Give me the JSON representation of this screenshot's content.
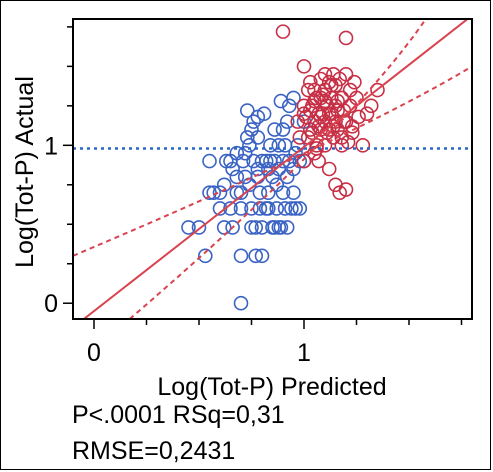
{
  "chart_data": {
    "type": "scatter",
    "title": "",
    "xlabel": "Log(Tot-P) Predicted",
    "ylabel": "Log(Tot-P) Actual",
    "xlim": [
      -0.1,
      1.8
    ],
    "ylim": [
      -0.1,
      1.8
    ],
    "x_ticks": [
      0,
      1
    ],
    "y_ticks": [
      0,
      1
    ],
    "minor_tick_step": 0.25,
    "grid": false,
    "reference_line": {
      "y": 0.98,
      "style": "dotted",
      "color": "#2a66c8"
    },
    "fit_line": {
      "intercept": -0.05,
      "slope": 1.04,
      "color": "#d9434f"
    },
    "confidence_curves": [
      {
        "points": [
          [
            -0.1,
            0.3
          ],
          [
            1.05,
            0.98
          ],
          [
            1.8,
            1.5
          ]
        ],
        "color": "#d9434f",
        "style": "dashed"
      },
      {
        "points": [
          [
            0.17,
            -0.1
          ],
          [
            1.05,
            0.98
          ],
          [
            1.58,
            1.8
          ]
        ],
        "color": "#d9434f",
        "style": "dashed"
      }
    ],
    "series": [
      {
        "color": "#3a63c4",
        "x": [
          0.45,
          0.5,
          0.53,
          0.55,
          0.57,
          0.6,
          0.62,
          0.63,
          0.65,
          0.65,
          0.66,
          0.68,
          0.68,
          0.7,
          0.7,
          0.7,
          0.71,
          0.72,
          0.72,
          0.73,
          0.74,
          0.75,
          0.75,
          0.75,
          0.76,
          0.77,
          0.77,
          0.78,
          0.78,
          0.78,
          0.79,
          0.8,
          0.8,
          0.8,
          0.81,
          0.82,
          0.82,
          0.83,
          0.83,
          0.84,
          0.85,
          0.85,
          0.86,
          0.86,
          0.87,
          0.87,
          0.88,
          0.88,
          0.89,
          0.89,
          0.9,
          0.9,
          0.9,
          0.91,
          0.91,
          0.92,
          0.92,
          0.93,
          0.93,
          0.94,
          0.95,
          0.95,
          0.96,
          0.96,
          0.97,
          0.98,
          1.0,
          0.55,
          0.6,
          0.62,
          0.66,
          0.7,
          0.73,
          0.76,
          0.79,
          0.84,
          0.92,
          0.95,
          0.98,
          0.88,
          1.0,
          0.83,
          0.78,
          0.86,
          0.68,
          0.74
        ],
        "y": [
          0.48,
          0.48,
          0.3,
          0.7,
          0.7,
          0.6,
          0.75,
          0.9,
          0.9,
          0.6,
          0.48,
          0.8,
          0.7,
          0.0,
          0.3,
          0.6,
          0.9,
          0.95,
          0.8,
          1.22,
          0.75,
          0.48,
          0.6,
          1.1,
          0.9,
          0.3,
          0.48,
          1.18,
          1.05,
          0.8,
          0.6,
          0.48,
          0.3,
          0.9,
          1.2,
          0.9,
          0.6,
          0.85,
          0.7,
          1.0,
          0.48,
          0.8,
          1.1,
          0.9,
          0.6,
          0.75,
          1.0,
          0.85,
          1.28,
          0.48,
          1.1,
          0.9,
          0.7,
          0.6,
          1.0,
          0.8,
          0.48,
          1.25,
          0.9,
          0.6,
          0.7,
          1.3,
          0.95,
          0.6,
          1.0,
          0.6,
          1.15,
          0.9,
          0.7,
          0.48,
          0.85,
          0.7,
          1.05,
          1.15,
          0.7,
          0.9,
          1.15,
          0.85,
          0.9,
          0.48,
          0.9,
          0.6,
          0.85,
          0.48,
          0.95,
          1.0
        ]
      },
      {
        "color": "#c72f45",
        "x": [
          0.9,
          1.0,
          1.0,
          1.0,
          1.02,
          1.02,
          1.03,
          1.03,
          1.04,
          1.05,
          1.05,
          1.05,
          1.06,
          1.06,
          1.07,
          1.07,
          1.08,
          1.08,
          1.08,
          1.09,
          1.1,
          1.1,
          1.1,
          1.1,
          1.11,
          1.12,
          1.12,
          1.12,
          1.13,
          1.13,
          1.14,
          1.14,
          1.15,
          1.15,
          1.15,
          1.16,
          1.16,
          1.17,
          1.17,
          1.18,
          1.18,
          1.19,
          1.2,
          1.2,
          1.2,
          1.22,
          1.22,
          1.23,
          1.24,
          1.25,
          1.26,
          1.28,
          1.3,
          1.32,
          1.35,
          1.2,
          0.97,
          0.98,
          1.0,
          1.01,
          1.04,
          1.06,
          1.08,
          1.1,
          1.12,
          1.14,
          1.16,
          1.18,
          1.09,
          1.11,
          1.13,
          1.15,
          1.19,
          1.21,
          1.23,
          1.03,
          1.05,
          1.07
        ],
        "y": [
          1.72,
          1.5,
          1.2,
          0.9,
          1.35,
          1.05,
          1.4,
          1.1,
          1.25,
          1.35,
          1.15,
          0.95,
          1.3,
          1.0,
          1.2,
          0.9,
          1.42,
          1.1,
          1.3,
          1.2,
          1.35,
          1.0,
          1.15,
          1.45,
          1.25,
          1.4,
          1.1,
          0.85,
          1.3,
          1.2,
          1.45,
          1.05,
          1.38,
          0.75,
          1.15,
          1.28,
          1.1,
          1.42,
          0.7,
          1.3,
          1.0,
          1.22,
          1.45,
          0.72,
          1.15,
          1.35,
          1.25,
          1.12,
          1.4,
          1.3,
          1.18,
          1.0,
          1.2,
          1.25,
          1.35,
          1.68,
          1.15,
          1.05,
          1.25,
          1.18,
          1.08,
          0.98,
          1.18,
          1.28,
          1.2,
          1.12,
          1.22,
          1.05,
          1.32,
          1.08,
          1.38,
          1.25,
          1.15,
          1.02,
          1.08,
          1.22,
          1.28,
          1.12
        ]
      }
    ]
  },
  "stats": {
    "line1": "P<.0001 RSq=0,31",
    "line2": "RMSE=0,2431"
  }
}
